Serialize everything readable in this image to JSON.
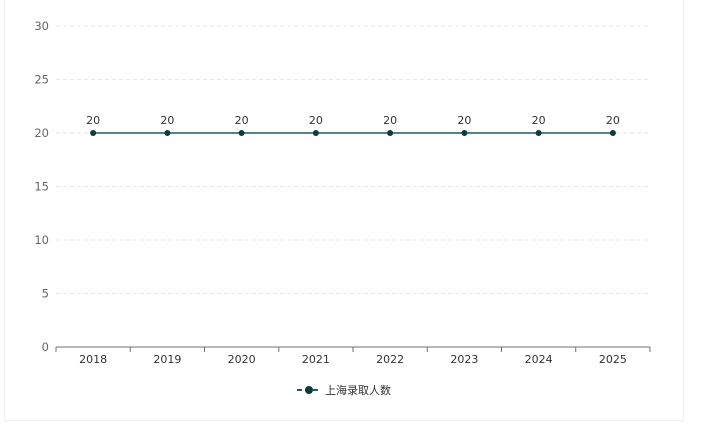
{
  "chart_data": {
    "type": "line",
    "title": "",
    "xlabel": "",
    "ylabel": "",
    "categories": [
      "2018",
      "2019",
      "2020",
      "2021",
      "2022",
      "2023",
      "2024",
      "2025"
    ],
    "series": [
      {
        "name": "上海录取人数",
        "values": [
          20,
          20,
          20,
          20,
          20,
          20,
          20,
          20
        ],
        "color": "#1f5c5c",
        "marker_color": "#0b3b3b"
      }
    ],
    "ylim": [
      0,
      30
    ],
    "yticks": [
      0,
      5,
      10,
      15,
      20,
      25,
      30
    ],
    "grid": true,
    "data_labels": true,
    "legend": "bottom-center"
  }
}
